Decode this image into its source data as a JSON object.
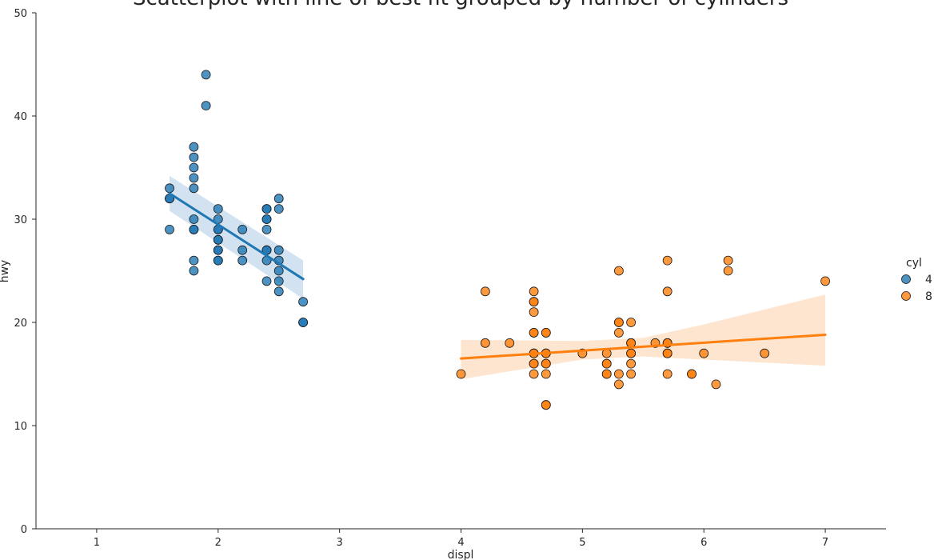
{
  "chart_data": {
    "type": "scatter",
    "title": "Scatterplot with line of best fit grouped by number of cylinders",
    "xlabel": "displ",
    "ylabel": "hwy",
    "xlim": [
      0.5,
      7.5
    ],
    "ylim": [
      0,
      50
    ],
    "x_ticks": [
      1,
      2,
      3,
      4,
      5,
      6,
      7
    ],
    "y_ticks": [
      0,
      10,
      20,
      30,
      40,
      50
    ],
    "grid": false,
    "legend": {
      "title": "cyl",
      "placement": "right"
    },
    "series": [
      {
        "name": "4",
        "color": "#1f77b4",
        "band_color": "#aecbe6",
        "points": [
          [
            1.6,
            33
          ],
          [
            1.6,
            32
          ],
          [
            1.6,
            32
          ],
          [
            1.6,
            29
          ],
          [
            1.8,
            37
          ],
          [
            1.8,
            36
          ],
          [
            1.8,
            35
          ],
          [
            1.8,
            34
          ],
          [
            1.8,
            33
          ],
          [
            1.8,
            30
          ],
          [
            1.8,
            29
          ],
          [
            1.8,
            29
          ],
          [
            1.8,
            26
          ],
          [
            1.8,
            25
          ],
          [
            1.9,
            44
          ],
          [
            1.9,
            41
          ],
          [
            2.0,
            31
          ],
          [
            2.0,
            30
          ],
          [
            2.0,
            29
          ],
          [
            2.0,
            29
          ],
          [
            2.0,
            28
          ],
          [
            2.0,
            28
          ],
          [
            2.0,
            27
          ],
          [
            2.0,
            27
          ],
          [
            2.0,
            26
          ],
          [
            2.0,
            26
          ],
          [
            2.2,
            29
          ],
          [
            2.2,
            27
          ],
          [
            2.2,
            26
          ],
          [
            2.4,
            31
          ],
          [
            2.4,
            31
          ],
          [
            2.4,
            30
          ],
          [
            2.4,
            30
          ],
          [
            2.4,
            29
          ],
          [
            2.4,
            27
          ],
          [
            2.4,
            27
          ],
          [
            2.4,
            26
          ],
          [
            2.4,
            24
          ],
          [
            2.5,
            32
          ],
          [
            2.5,
            31
          ],
          [
            2.5,
            27
          ],
          [
            2.5,
            26
          ],
          [
            2.5,
            25
          ],
          [
            2.5,
            24
          ],
          [
            2.5,
            23
          ],
          [
            2.7,
            22
          ],
          [
            2.7,
            20
          ],
          [
            2.7,
            20
          ]
        ],
        "fit": {
          "x": [
            1.6,
            2.7
          ],
          "y": [
            32.5,
            24.2
          ]
        },
        "ci": {
          "x": [
            1.6,
            2.7
          ],
          "upper": [
            34.2,
            26.0
          ],
          "lower": [
            30.8,
            22.3
          ]
        }
      },
      {
        "name": "8",
        "color": "#ff7f0e",
        "band_color": "#fdd0a8",
        "points": [
          [
            4.0,
            15
          ],
          [
            4.2,
            23
          ],
          [
            4.2,
            18
          ],
          [
            4.4,
            18
          ],
          [
            4.6,
            23
          ],
          [
            4.6,
            22
          ],
          [
            4.6,
            22
          ],
          [
            4.6,
            21
          ],
          [
            4.6,
            19
          ],
          [
            4.6,
            19
          ],
          [
            4.6,
            17
          ],
          [
            4.6,
            17
          ],
          [
            4.6,
            16
          ],
          [
            4.6,
            16
          ],
          [
            4.6,
            15
          ],
          [
            4.7,
            19
          ],
          [
            4.7,
            19
          ],
          [
            4.7,
            17
          ],
          [
            4.7,
            17
          ],
          [
            4.7,
            16
          ],
          [
            4.7,
            16
          ],
          [
            4.7,
            15
          ],
          [
            4.7,
            12
          ],
          [
            4.7,
            12
          ],
          [
            5.0,
            17
          ],
          [
            5.2,
            17
          ],
          [
            5.2,
            16
          ],
          [
            5.2,
            16
          ],
          [
            5.2,
            15
          ],
          [
            5.2,
            15
          ],
          [
            5.3,
            25
          ],
          [
            5.3,
            20
          ],
          [
            5.3,
            20
          ],
          [
            5.3,
            19
          ],
          [
            5.3,
            15
          ],
          [
            5.3,
            14
          ],
          [
            5.4,
            20
          ],
          [
            5.4,
            18
          ],
          [
            5.4,
            18
          ],
          [
            5.4,
            17
          ],
          [
            5.4,
            17
          ],
          [
            5.4,
            16
          ],
          [
            5.4,
            15
          ],
          [
            5.6,
            18
          ],
          [
            5.7,
            26
          ],
          [
            5.7,
            23
          ],
          [
            5.7,
            18
          ],
          [
            5.7,
            18
          ],
          [
            5.7,
            17
          ],
          [
            5.7,
            17
          ],
          [
            5.7,
            15
          ],
          [
            5.9,
            15
          ],
          [
            5.9,
            15
          ],
          [
            6.0,
            17
          ],
          [
            6.1,
            14
          ],
          [
            6.2,
            26
          ],
          [
            6.2,
            25
          ],
          [
            6.5,
            17
          ],
          [
            7.0,
            24
          ]
        ],
        "fit": {
          "x": [
            4.0,
            7.0
          ],
          "y": [
            16.5,
            18.8
          ]
        },
        "ci": {
          "x": [
            4.0,
            5.0,
            5.5,
            6.0,
            7.0
          ],
          "upper": [
            18.3,
            18.2,
            18.5,
            19.8,
            22.7
          ],
          "lower": [
            14.5,
            16.4,
            16.7,
            16.4,
            15.8
          ]
        }
      }
    ]
  }
}
